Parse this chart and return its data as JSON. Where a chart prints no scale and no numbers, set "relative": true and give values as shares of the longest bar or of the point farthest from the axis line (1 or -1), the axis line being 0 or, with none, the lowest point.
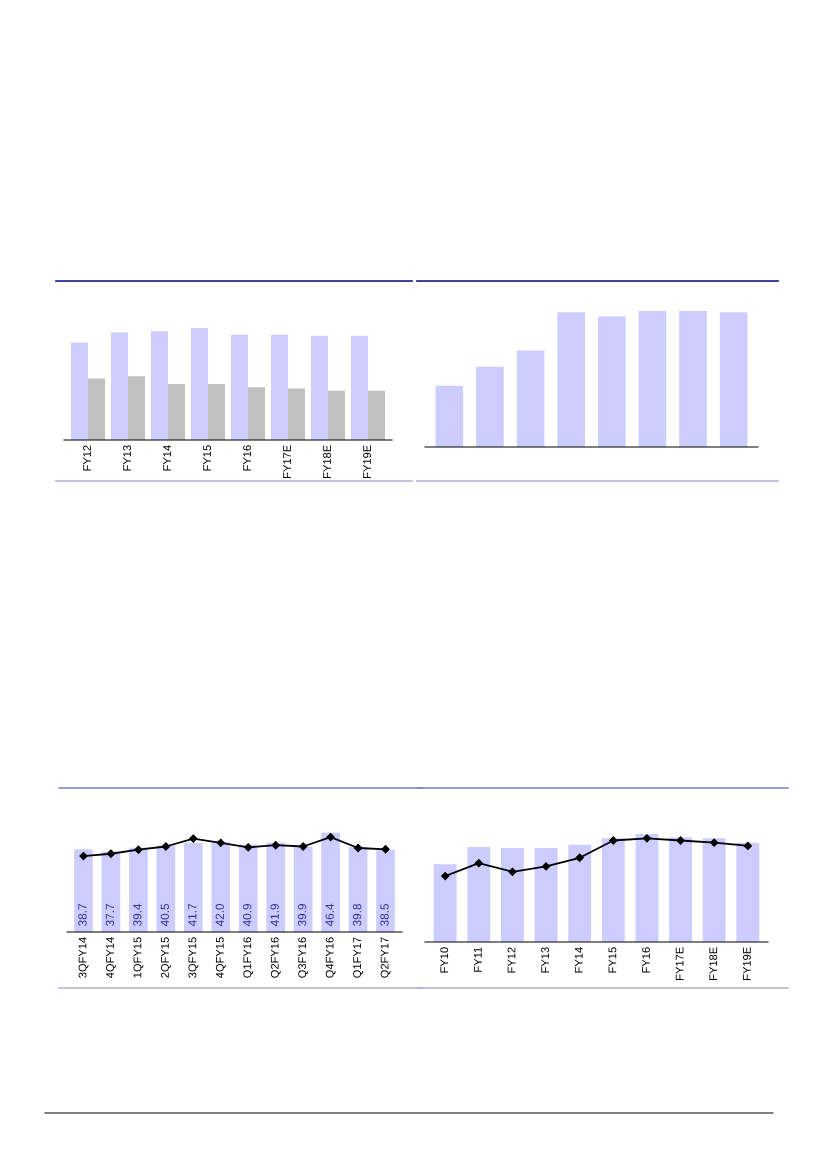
{
  "chart_data": [
    {
      "type": "bar",
      "relative": true,
      "tick_labels": "x",
      "categories": [
        "FY12",
        "FY13",
        "FY14",
        "FY15",
        "FY16",
        "FY17E",
        "FY18E",
        "FY19E"
      ],
      "series": [
        {
          "color": "#ccccff",
          "values": [
            0.87,
            0.96,
            0.97,
            1,
            0.94,
            0.94,
            0.93,
            0.93
          ]
        },
        {
          "color": "#c0c0c0",
          "values": [
            0.55,
            0.57,
            0.5,
            0.5,
            0.47,
            0.46,
            0.44,
            0.44
          ]
        }
      ]
    },
    {
      "type": "bar",
      "relative": true,
      "tick_labels": false,
      "categories": [
        null,
        null,
        null,
        null,
        null,
        null,
        null,
        null
      ],
      "series": [
        {
          "color": "#ccccff",
          "values": [
            0.45,
            0.59,
            0.71,
            0.99,
            0.96,
            1,
            1,
            0.99
          ]
        }
      ]
    },
    {
      "type": "bar",
      "tick_labels": "x",
      "categories": [
        "3QFY14",
        "4QFY14",
        "1QFY15",
        "2QFY15",
        "3QFY15",
        "4QFY15",
        "Q1FY16",
        "Q2FY16",
        "Q3FY16",
        "Q4FY16",
        "Q1FY17",
        "Q2FY17"
      ],
      "series": [
        {
          "color": "#ccccff",
          "values": [
            38.7,
            37.7,
            39.4,
            40.5,
            41.7,
            42.0,
            40.9,
            41.9,
            39.9,
            46.4,
            39.8,
            38.5
          ],
          "value_labels": [
            "38.7",
            "37.7",
            "39.4",
            "40.5",
            "41.7",
            "42.0",
            "40.9",
            "41.9",
            "39.9",
            "46.4",
            "39.8",
            "38.5"
          ]
        },
        {
          "type": "line",
          "color": "#000000",
          "marker": "diamond",
          "line_style": "solid",
          "values": [
            35.5,
            36.6,
            38.5,
            40.0,
            43.7,
            41.7,
            39.6,
            40.6,
            40.0,
            44.4,
            39.3,
            38.7
          ]
        }
      ]
    },
    {
      "type": "bar",
      "relative": true,
      "tick_labels": "x",
      "categories": [
        "FY10",
        "FY11",
        "FY12",
        "FY13",
        "FY14",
        "FY15",
        "FY16",
        "FY17E",
        "FY18E",
        "FY19E"
      ],
      "series": [
        {
          "color": "#ccccff",
          "values": [
            0.72,
            0.88,
            0.87,
            0.87,
            0.9,
            0.96,
            1,
            0.97,
            0.96,
            0.92
          ]
        },
        {
          "type": "line",
          "color": "#000000",
          "marker": "diamond",
          "line_style": "solid",
          "values": [
            0.61,
            0.73,
            0.65,
            0.7,
            0.78,
            0.94,
            0.96,
            0.94,
            0.92,
            0.89
          ]
        }
      ]
    }
  ]
}
